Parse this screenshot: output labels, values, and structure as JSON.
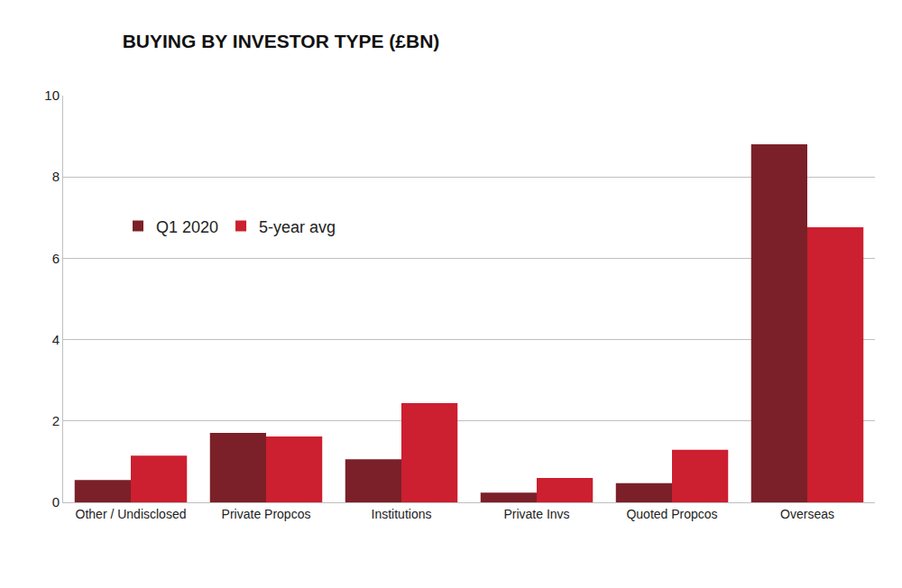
{
  "chart_data": {
    "type": "bar",
    "title": "BUYING BY INVESTOR TYPE (£BN)",
    "categories": [
      "Other / Undisclosed",
      "Private Propcos",
      "Institutions",
      "Private Invs",
      "Quoted Propcos",
      "Overseas"
    ],
    "series": [
      {
        "name": "Q1 2020",
        "color": "#7b2028",
        "values": [
          0.55,
          1.71,
          1.06,
          0.24,
          0.47,
          8.8
        ]
      },
      {
        "name": "5-year avg",
        "color": "#cc1f2f",
        "values": [
          1.15,
          1.62,
          2.44,
          0.6,
          1.29,
          6.76
        ]
      }
    ],
    "ylim": [
      0,
      10
    ],
    "yticks": [
      0,
      2,
      4,
      6,
      8,
      10
    ],
    "grid": true,
    "legend": "top left"
  }
}
